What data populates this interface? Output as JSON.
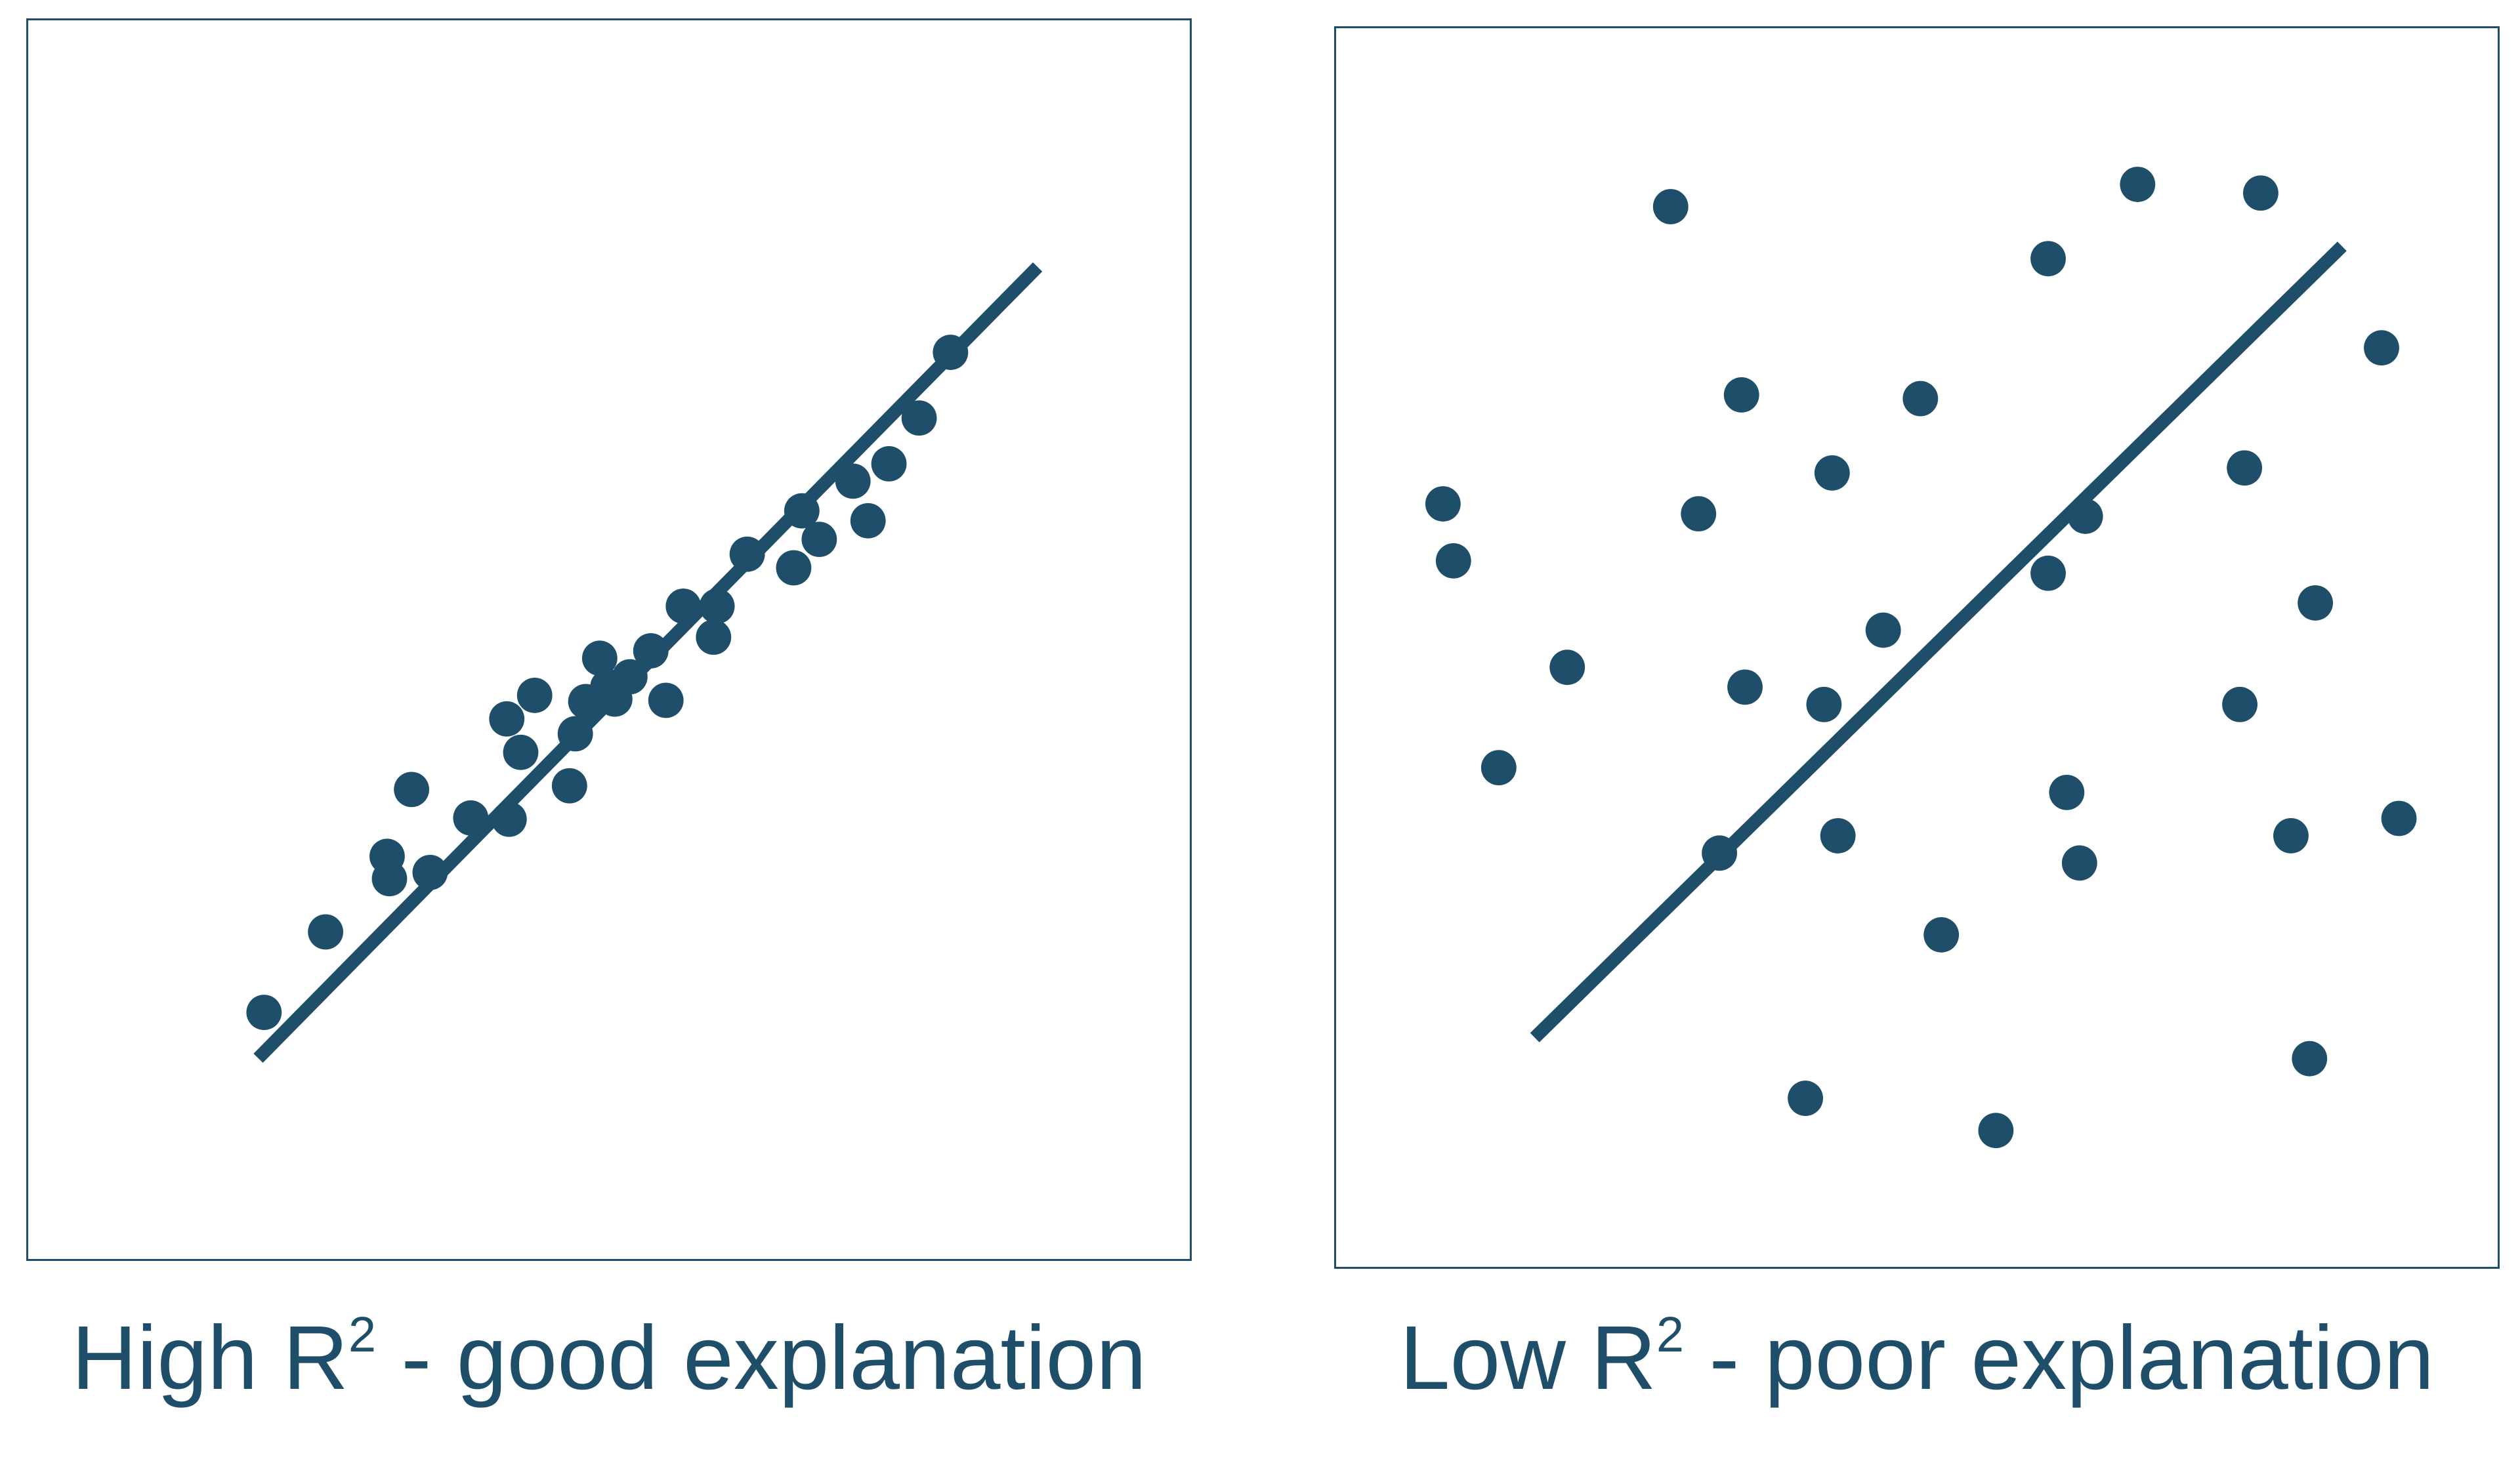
{
  "colors": {
    "ink": "#1f4e6b",
    "background": "#ffffff"
  },
  "chart_data": [
    {
      "type": "scatter",
      "caption": {
        "prefix": "High R",
        "sup": "2",
        "suffix": " - good explanation"
      },
      "xlim": [
        0,
        10
      ],
      "ylim": [
        0,
        10
      ],
      "grid": false,
      "regression_line": {
        "x": [
          1.98,
          8.69
        ],
        "y": [
          1.62,
          8.01
        ]
      },
      "points": [
        [
          2.03,
          1.99
        ],
        [
          2.56,
          2.64
        ],
        [
          3.09,
          3.25
        ],
        [
          3.3,
          3.79
        ],
        [
          3.11,
          3.07
        ],
        [
          3.46,
          3.12
        ],
        [
          3.81,
          3.56
        ],
        [
          4.14,
          3.55
        ],
        [
          4.12,
          4.36
        ],
        [
          4.24,
          4.09
        ],
        [
          4.36,
          4.55
        ],
        [
          4.66,
          3.82
        ],
        [
          4.71,
          4.24
        ],
        [
          4.8,
          4.5
        ],
        [
          4.92,
          4.85
        ],
        [
          4.99,
          4.62
        ],
        [
          5.05,
          4.52
        ],
        [
          5.18,
          4.7
        ],
        [
          5.36,
          4.91
        ],
        [
          5.49,
          4.51
        ],
        [
          5.64,
          5.27
        ],
        [
          5.9,
          5.02
        ],
        [
          5.93,
          5.27
        ],
        [
          6.19,
          5.69
        ],
        [
          6.59,
          5.58
        ],
        [
          6.66,
          6.04
        ],
        [
          6.81,
          5.81
        ],
        [
          7.1,
          6.28
        ],
        [
          7.23,
          5.96
        ],
        [
          7.41,
          6.42
        ],
        [
          7.67,
          6.79
        ],
        [
          7.94,
          7.32
        ]
      ]
    },
    {
      "type": "scatter",
      "caption": {
        "prefix": "Low R",
        "sup": "2",
        "suffix": " - poor explanation"
      },
      "xlim": [
        0,
        10
      ],
      "ylim": [
        0,
        10
      ],
      "grid": false,
      "regression_line": {
        "x": [
          1.71,
          8.66
        ],
        "y": [
          1.85,
          8.24
        ]
      },
      "points": [
        [
          2.88,
          8.56
        ],
        [
          6.13,
          8.14
        ],
        [
          6.9,
          8.74
        ],
        [
          7.96,
          8.67
        ],
        [
          9.0,
          7.42
        ],
        [
          3.49,
          7.04
        ],
        [
          5.03,
          7.01
        ],
        [
          7.82,
          6.45
        ],
        [
          4.27,
          6.41
        ],
        [
          0.92,
          6.16
        ],
        [
          3.12,
          6.08
        ],
        [
          6.45,
          6.06
        ],
        [
          1.01,
          5.7
        ],
        [
          6.13,
          5.6
        ],
        [
          4.71,
          5.14
        ],
        [
          8.43,
          5.36
        ],
        [
          1.99,
          4.84
        ],
        [
          3.52,
          4.68
        ],
        [
          4.2,
          4.54
        ],
        [
          7.78,
          4.54
        ],
        [
          1.4,
          4.03
        ],
        [
          6.29,
          3.83
        ],
        [
          4.32,
          3.48
        ],
        [
          8.22,
          3.48
        ],
        [
          9.15,
          3.62
        ],
        [
          3.3,
          3.34
        ],
        [
          6.4,
          3.26
        ],
        [
          5.21,
          2.68
        ],
        [
          4.04,
          1.36
        ],
        [
          5.68,
          1.1
        ],
        [
          8.38,
          1.68
        ]
      ]
    }
  ]
}
